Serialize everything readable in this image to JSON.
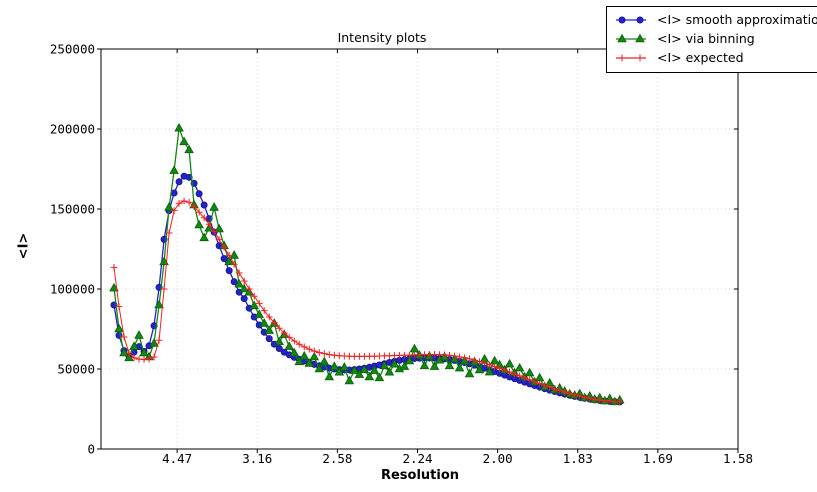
{
  "chart_data": {
    "type": "line",
    "title": "Intensity plots",
    "xlabel": "Resolution",
    "ylabel": "<I>",
    "grid": "dotted",
    "legend_position": "top-right",
    "x_axis": {
      "unit": "1/d^2 (labels show resolution d)",
      "range": [
        0.0025,
        0.4
      ],
      "tick_values": [
        0.05,
        0.1,
        0.15,
        0.2,
        0.25,
        0.3,
        0.35,
        0.4
      ],
      "tick_labels": [
        "4.47",
        "3.16",
        "2.58",
        "2.24",
        "2.00",
        "1.83",
        "1.69",
        "1.58"
      ]
    },
    "y_axis": {
      "range": [
        0,
        250000
      ],
      "tick_values": [
        0,
        50000,
        100000,
        150000,
        200000,
        250000
      ],
      "tick_labels": [
        "0",
        "50000",
        "100000",
        "150000",
        "200000",
        "250000"
      ]
    },
    "x_start": 0.0106,
    "x_step": 0.003125,
    "series": [
      {
        "name": "<I> smooth approximation",
        "marker": "circle",
        "color": "#2222cc",
        "edge": "#15158a",
        "values": [
          90000,
          71000,
          61500,
          58000,
          60500,
          64000,
          61000,
          64500,
          77000,
          101000,
          131000,
          149000,
          160000,
          167000,
          170500,
          169800,
          166000,
          159500,
          152500,
          144000,
          135500,
          127000,
          119000,
          111500,
          104500,
          98000,
          94000,
          88000,
          82500,
          77500,
          73000,
          69000,
          65500,
          62800,
          60500,
          58800,
          57300,
          56000,
          55000,
          53900,
          52900,
          52000,
          51200,
          50500,
          50000,
          49600,
          49400,
          49400,
          49600,
          50000,
          50500,
          51100,
          51800,
          52500,
          53300,
          54100,
          54800,
          55400,
          55900,
          56300,
          56600,
          56800,
          56900,
          56900,
          56800,
          56600,
          56300,
          55900,
          55400,
          54800,
          54100,
          53300,
          52400,
          51500,
          50500,
          49500,
          48400,
          47300,
          46200,
          45100,
          44000,
          42900,
          41800,
          40700,
          39700,
          38700,
          37700,
          36800,
          35900,
          35100,
          34300,
          33600,
          32900,
          32300,
          31700,
          31200,
          30700,
          30300,
          30000,
          29700,
          29500,
          29400
        ]
      },
      {
        "name": "<I> via binning",
        "marker": "triangle",
        "color": "#118811",
        "edge": "#0a5c0a",
        "values": [
          100600,
          75000,
          60000,
          57000,
          64000,
          71000,
          60000,
          57500,
          66000,
          90000,
          117000,
          151000,
          174000,
          200500,
          192000,
          187000,
          152500,
          140000,
          132000,
          138000,
          151000,
          137500,
          127000,
          117000,
          121000,
          103000,
          100000,
          98000,
          89500,
          84000,
          78500,
          74000,
          78500,
          67000,
          71500,
          64000,
          60000,
          54500,
          58000,
          53500,
          57500,
          50000,
          54500,
          45000,
          51500,
          48000,
          51000,
          42500,
          49000,
          46500,
          49500,
          45000,
          49000,
          44500,
          52000,
          48000,
          53000,
          50000,
          51500,
          55000,
          62500,
          58500,
          52000,
          58000,
          51500,
          55500,
          57500,
          52000,
          56200,
          50600,
          55000,
          46900,
          54400,
          49400,
          56200,
          48100,
          55000,
          52500,
          49400,
          53100,
          47500,
          50600,
          45000,
          47500,
          41900,
          44400,
          38750,
          41200,
          36900,
          38100,
          36000,
          34400,
          33500,
          34500,
          32000,
          33000,
          31000,
          32000,
          30000,
          31500,
          29500,
          30600
        ]
      },
      {
        "name": "<I> expected",
        "marker": "plus",
        "color": "#ee2222",
        "edge": "#ee2222",
        "values": [
          113500,
          89000,
          70000,
          60000,
          57000,
          56200,
          56000,
          56200,
          57500,
          68000,
          100000,
          135000,
          149000,
          153500,
          155000,
          154200,
          151500,
          148000,
          144500,
          140500,
          136000,
          131000,
          126000,
          121000,
          115500,
          110000,
          105000,
          100000,
          95500,
          91000,
          86500,
          82500,
          79000,
          75500,
          72500,
          69800,
          67500,
          65500,
          63800,
          62400,
          61200,
          60300,
          59600,
          59000,
          58600,
          58300,
          58100,
          58000,
          57900,
          57900,
          57900,
          58000,
          58000,
          58100,
          58200,
          58300,
          58400,
          58500,
          58600,
          58700,
          58800,
          58900,
          59000,
          59100,
          59100,
          59000,
          58800,
          58500,
          58100,
          57600,
          57000,
          56300,
          55500,
          54600,
          53600,
          52600,
          51500,
          50400,
          49300,
          48100,
          46900,
          45700,
          44500,
          43300,
          42100,
          40900,
          39800,
          38700,
          37600,
          36600,
          35600,
          34700,
          33800,
          33000,
          32300,
          31600,
          31000,
          30500,
          30100,
          29800,
          29600,
          29500
        ]
      }
    ]
  }
}
